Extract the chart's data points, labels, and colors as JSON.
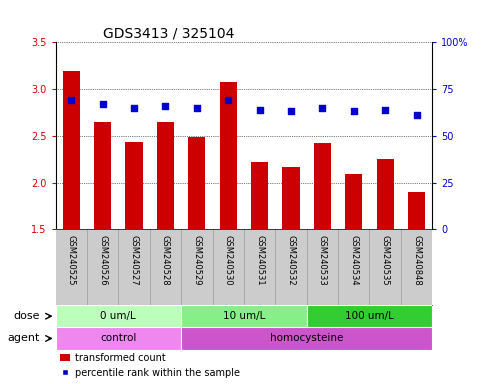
{
  "title": "GDS3413 / 325104",
  "samples": [
    "GSM240525",
    "GSM240526",
    "GSM240527",
    "GSM240528",
    "GSM240529",
    "GSM240530",
    "GSM240531",
    "GSM240532",
    "GSM240533",
    "GSM240534",
    "GSM240535",
    "GSM240848"
  ],
  "transformed_count": [
    3.19,
    2.65,
    2.43,
    2.65,
    2.49,
    3.08,
    2.22,
    2.17,
    2.42,
    2.09,
    2.25,
    1.9
  ],
  "percentile_rank_pct": [
    69.0,
    67.0,
    65.0,
    66.0,
    65.0,
    69.0,
    64.0,
    63.0,
    65.0,
    63.0,
    64.0,
    61.0
  ],
  "bar_bottom": 1.5,
  "ylim_left": [
    1.5,
    3.5
  ],
  "ylim_right": [
    0,
    100
  ],
  "yticks_left": [
    1.5,
    2.0,
    2.5,
    3.0,
    3.5
  ],
  "yticks_right": [
    0,
    25,
    50,
    75,
    100
  ],
  "ytick_labels_right": [
    "0",
    "25",
    "50",
    "75",
    "100%"
  ],
  "bar_color": "#cc0000",
  "dot_color": "#0000cc",
  "bar_width": 0.55,
  "dose_groups": [
    {
      "label": "0 um/L",
      "start": 0,
      "end": 4,
      "color": "#bbffbb"
    },
    {
      "label": "10 um/L",
      "start": 4,
      "end": 8,
      "color": "#88ee88"
    },
    {
      "label": "100 um/L",
      "start": 8,
      "end": 12,
      "color": "#33cc33"
    }
  ],
  "agent_groups": [
    {
      "label": "control",
      "start": 0,
      "end": 4,
      "color": "#ee88ee"
    },
    {
      "label": "homocysteine",
      "start": 4,
      "end": 12,
      "color": "#cc55cc"
    }
  ],
  "dose_label": "dose",
  "agent_label": "agent",
  "legend_bar_label": "transformed count",
  "legend_dot_label": "percentile rank within the sample",
  "grid_color": "#000000",
  "bg_color": "#ffffff",
  "tick_area_bg": "#cccccc",
  "title_fontsize": 10,
  "axis_fontsize": 7,
  "sample_fontsize": 6,
  "row_fontsize": 7.5,
  "legend_fontsize": 7
}
